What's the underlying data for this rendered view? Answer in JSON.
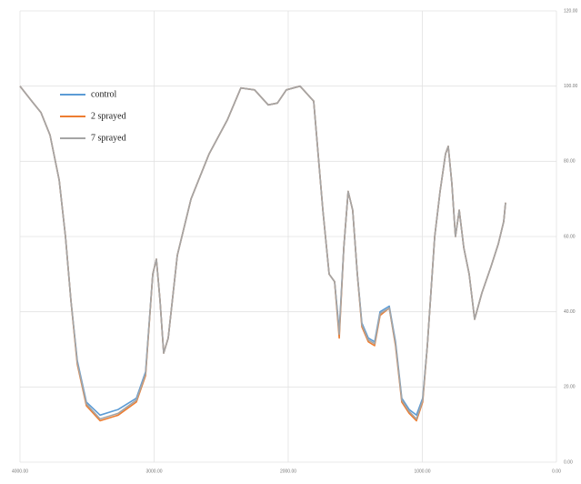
{
  "chart_data": {
    "type": "line",
    "x": [
      4000,
      3912,
      3844,
      3776,
      3708,
      3661,
      3620,
      3573,
      3505,
      3403,
      3268,
      3132,
      3064,
      3010,
      2983,
      2956,
      2929,
      2895,
      2827,
      2725,
      2590,
      2454,
      2353,
      2251,
      2149,
      2081,
      2014,
      1912,
      1810,
      1742,
      1695,
      1654,
      1620,
      1586,
      1553,
      1519,
      1485,
      1451,
      1403,
      1356,
      1315,
      1247,
      1200,
      1153,
      1098,
      1044,
      997,
      963,
      908,
      868,
      827,
      807,
      780,
      753,
      725,
      691,
      651,
      610,
      556,
      488,
      434,
      393,
      380
    ],
    "series": [
      {
        "name": "control",
        "color": "#5b9bd5",
        "values": [
          100,
          96,
          93,
          87,
          75,
          60,
          43,
          27,
          16,
          12.5,
          14,
          17,
          24,
          50,
          54,
          43,
          29,
          33,
          55,
          70,
          82,
          91,
          99.5,
          99,
          95,
          95.5,
          99,
          100,
          96,
          67,
          50,
          48,
          35,
          57,
          72,
          67,
          50,
          37,
          33,
          32,
          40,
          41.5,
          32,
          17,
          14,
          12.5,
          17,
          31,
          60,
          72,
          82,
          84,
          74,
          60,
          67,
          57,
          50,
          38,
          45,
          52,
          58,
          64,
          69
        ]
      },
      {
        "name": "2 sprayed",
        "color": "#ed7d31",
        "values": [
          100,
          96,
          93,
          87,
          75,
          60,
          43,
          26,
          15,
          11,
          12.5,
          16,
          23,
          50,
          54,
          43,
          29,
          33,
          55,
          70,
          82,
          91,
          99.5,
          99,
          95,
          95.5,
          99,
          100,
          96,
          67,
          50,
          48,
          33,
          57,
          72,
          67,
          50,
          36,
          32,
          31,
          39,
          41,
          31,
          16,
          13,
          11,
          16,
          31,
          60,
          72,
          82,
          84,
          74,
          60,
          67,
          57,
          50,
          38,
          45,
          52,
          58,
          64,
          69
        ]
      },
      {
        "name": "7 sprayed",
        "color": "#a5a5a5",
        "values": [
          100,
          96,
          93,
          87,
          75,
          60,
          43,
          26.5,
          15.5,
          11.5,
          13,
          16.5,
          23.5,
          50,
          54,
          43,
          29,
          33,
          55,
          70,
          82,
          91,
          99.5,
          99,
          95,
          95.5,
          99,
          100,
          96,
          67,
          50,
          48,
          34,
          57,
          72,
          67,
          50,
          36.5,
          32.5,
          31.5,
          39.5,
          41,
          31.5,
          16.5,
          13.5,
          11.5,
          16.5,
          31,
          60,
          72,
          82,
          84,
          74,
          60,
          67,
          57,
          50,
          38,
          45,
          52,
          58,
          64,
          69
        ]
      }
    ],
    "xlim": [
      4000,
      0
    ],
    "xticks": [
      {
        "value": 4000,
        "label": "4000.00"
      },
      {
        "value": 3000,
        "label": "3000.00"
      },
      {
        "value": 2000,
        "label": "2000.00"
      },
      {
        "value": 1000,
        "label": "1000.00"
      },
      {
        "value": 0,
        "label": "0.00"
      }
    ],
    "ylim": [
      0,
      120
    ],
    "yticks": [
      {
        "value": 0,
        "label": "0.00"
      },
      {
        "value": 20,
        "label": "20.00"
      },
      {
        "value": 40,
        "label": "40.00"
      },
      {
        "value": 60,
        "label": "60.00"
      },
      {
        "value": 80,
        "label": "80.00"
      },
      {
        "value": 100,
        "label": "100.00"
      },
      {
        "value": 120,
        "label": "120.00"
      }
    ],
    "grid": true,
    "legend": "upper-left"
  }
}
